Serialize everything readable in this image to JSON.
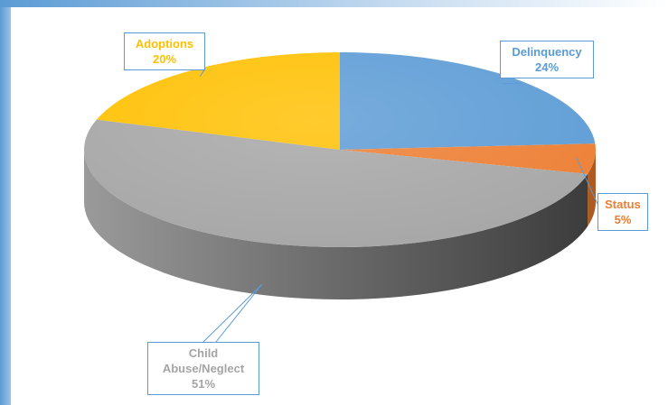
{
  "chart_data": {
    "type": "pie",
    "style": "3d",
    "title": "",
    "slices": [
      {
        "label": "Delinquency",
        "value": 24,
        "pct_label": "24%",
        "color": "#5b9bd5",
        "side_color": "#41719c"
      },
      {
        "label": "Status",
        "value": 5,
        "pct_label": "5%",
        "color": "#ed7d31",
        "side_color": "#ae5a21"
      },
      {
        "label": "Child Abuse/Neglect",
        "label_lines": [
          "Child",
          "Abuse/Neglect"
        ],
        "value": 51,
        "pct_label": "51%",
        "color": "#a5a5a5",
        "side_color": "#6e6e6e"
      },
      {
        "label": "Adoptions",
        "value": 20,
        "pct_label": "20%",
        "color": "#ffc000",
        "side_color": "#bf9000"
      }
    ],
    "legend": "none",
    "data_labels": "callouts"
  }
}
